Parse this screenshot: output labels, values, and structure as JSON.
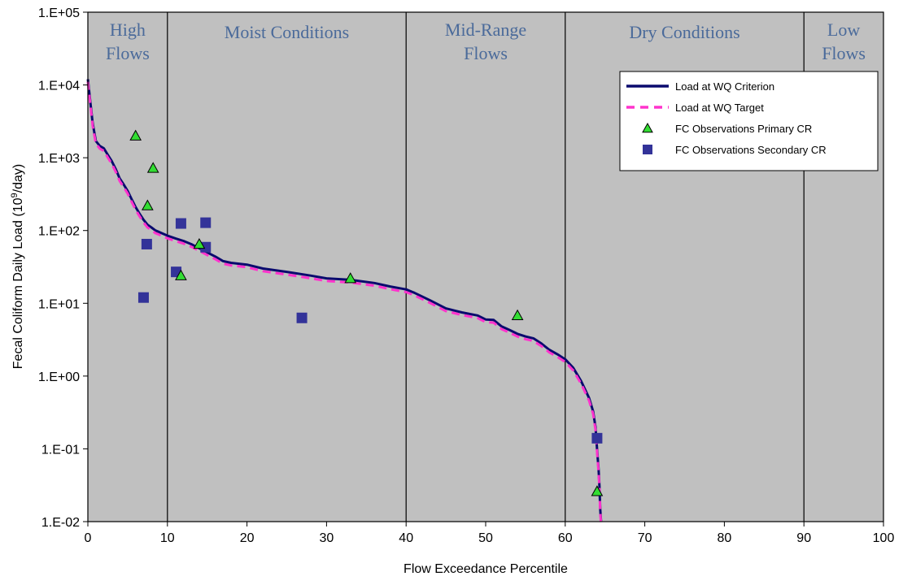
{
  "chart_data": {
    "type": "scatter",
    "xlabel": "Flow Exceedance Percentile",
    "ylabel_main": "Fecal Coliform Daily Load (10",
    "ylabel_sup": "9",
    "ylabel_tail": "/day)",
    "xlim": [
      0,
      100
    ],
    "ylim_log10": [
      -2,
      5
    ],
    "y_scale": "log",
    "x_ticks": [
      0,
      10,
      20,
      30,
      40,
      50,
      60,
      70,
      80,
      90,
      100
    ],
    "x_tick_labels": [
      "0",
      "10",
      "20",
      "30",
      "40",
      "50",
      "60",
      "70",
      "80",
      "90",
      "100"
    ],
    "y_ticks_log10": [
      5,
      4,
      3,
      2,
      1,
      0,
      -1,
      -2
    ],
    "y_tick_labels": [
      "1.E+05",
      "1.E+04",
      "1.E+03",
      "1.E+02",
      "1.E+01",
      "1.E+00",
      "1.E-01",
      "1.E-02"
    ],
    "region_boundaries": [
      10,
      40,
      60,
      90
    ],
    "regions": [
      {
        "lines": [
          "High",
          "Flows"
        ],
        "x": 5
      },
      {
        "lines": [
          "Moist Conditions"
        ],
        "x": 25
      },
      {
        "lines": [
          "Mid-Range",
          "Flows"
        ],
        "x": 50
      },
      {
        "lines": [
          "Dry Conditions"
        ],
        "x": 75
      },
      {
        "lines": [
          "Low",
          "Flows"
        ],
        "x": 95
      }
    ],
    "legend_position": "top-right",
    "legend": [
      {
        "name": "Load at WQ Criterion",
        "kind": "solid-line",
        "color": "#0a0a6e"
      },
      {
        "name": "Load at WQ Target",
        "kind": "dashed-line",
        "color": "#ff33cc"
      },
      {
        "name": "FC Observations Primary CR",
        "kind": "triangle",
        "color": "#33dd33"
      },
      {
        "name": "FC Observations Secondary CR",
        "kind": "square",
        "color": "#333399"
      }
    ],
    "criterion_curve": {
      "x": [
        0,
        0.3,
        0.6,
        1,
        1.5,
        2,
        2.5,
        3,
        3.5,
        4,
        4.5,
        5,
        5.5,
        6,
        6.5,
        7,
        7.5,
        8,
        8.5,
        9,
        10,
        11,
        12,
        13,
        14,
        15,
        16,
        17,
        18,
        20,
        22,
        25,
        28,
        30,
        33,
        36,
        38,
        40,
        41,
        43,
        45,
        47,
        49,
        50,
        51,
        52,
        53,
        54,
        55,
        56,
        57,
        58,
        59,
        60,
        61,
        62,
        63,
        63.5,
        63.8,
        64,
        64.2,
        64.3,
        64.4,
        64.5
      ],
      "y": [
        12000,
        6000,
        3000,
        1700,
        1450,
        1350,
        1100,
        900,
        700,
        520,
        430,
        350,
        270,
        210,
        170,
        140,
        120,
        110,
        100,
        95,
        85,
        78,
        72,
        65,
        57,
        50,
        44,
        38,
        36,
        34,
        30,
        27,
        24,
        22,
        21,
        19,
        17,
        15.5,
        14,
        11,
        8.5,
        7.5,
        6.8,
        6.0,
        5.9,
        4.8,
        4.3,
        3.8,
        3.5,
        3.3,
        2.8,
        2.3,
        2.0,
        1.7,
        1.3,
        0.85,
        0.5,
        0.33,
        0.2,
        0.1,
        0.05,
        0.03,
        0.015,
        0.01
      ]
    },
    "target_factor": 0.92,
    "primary_observations": [
      {
        "x": 6.0,
        "y": 2000
      },
      {
        "x": 8.2,
        "y": 720
      },
      {
        "x": 7.5,
        "y": 220
      },
      {
        "x": 14.0,
        "y": 65
      },
      {
        "x": 11.7,
        "y": 24
      },
      {
        "x": 33.0,
        "y": 22
      },
      {
        "x": 54.0,
        "y": 6.8
      },
      {
        "x": 64.0,
        "y": 0.026
      }
    ],
    "secondary_observations": [
      {
        "x": 7.4,
        "y": 65
      },
      {
        "x": 7.0,
        "y": 12
      },
      {
        "x": 11.7,
        "y": 125
      },
      {
        "x": 14.8,
        "y": 128
      },
      {
        "x": 14.8,
        "y": 59
      },
      {
        "x": 11.1,
        "y": 27
      },
      {
        "x": 26.9,
        "y": 6.3
      },
      {
        "x": 64.0,
        "y": 0.14
      }
    ]
  }
}
